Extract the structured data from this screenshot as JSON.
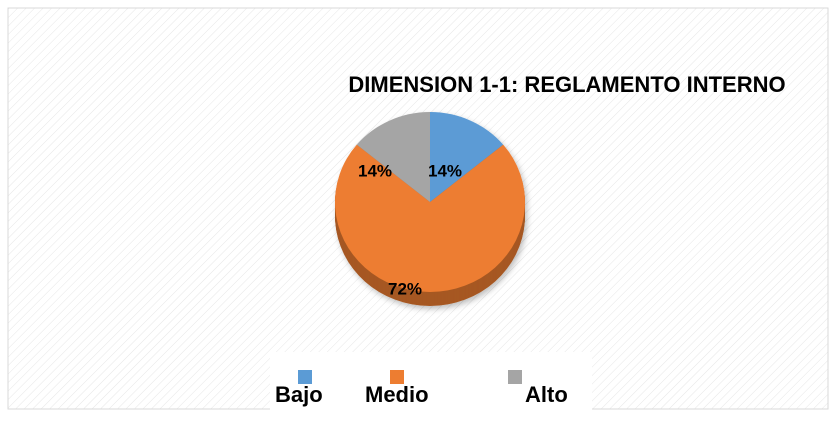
{
  "chart_data": {
    "type": "pie",
    "title": "DIMENSION 1-1: REGLAMENTO INTERNO",
    "categories": [
      "Bajo",
      "Medio",
      "Alto"
    ],
    "values": [
      14,
      72,
      14
    ],
    "value_labels": [
      "14%",
      "72%",
      "14%"
    ],
    "colors": [
      "#5b9bd5",
      "#ed7d31",
      "#a5a5a5"
    ],
    "legend": "bottom"
  }
}
